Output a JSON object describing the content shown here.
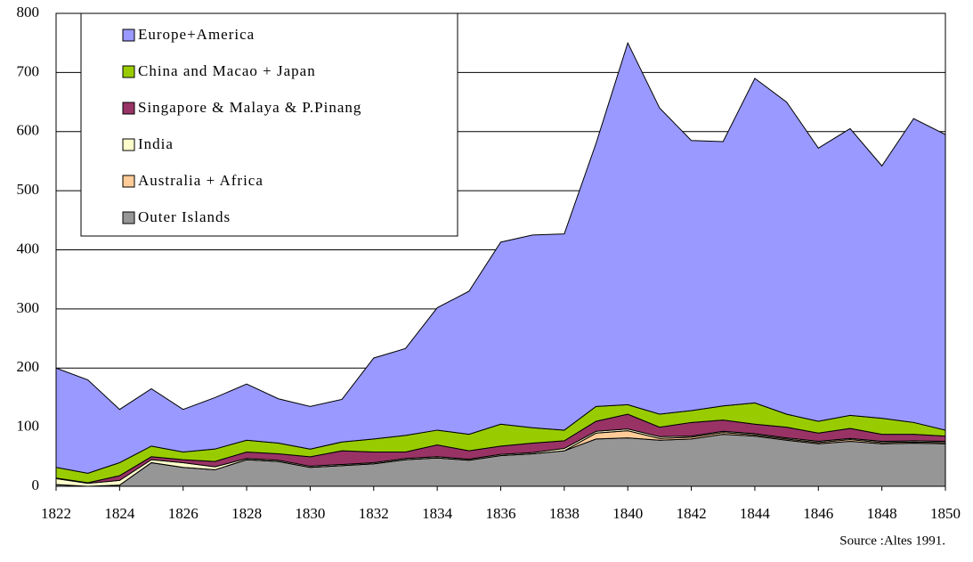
{
  "chart_data": {
    "type": "stacked_area",
    "x": [
      1822,
      1823,
      1824,
      1825,
      1826,
      1827,
      1828,
      1829,
      1830,
      1831,
      1832,
      1833,
      1834,
      1835,
      1836,
      1837,
      1838,
      1839,
      1840,
      1841,
      1842,
      1843,
      1844,
      1845,
      1846,
      1847,
      1848,
      1849,
      1850
    ],
    "series": [
      {
        "name": "Outer Islands",
        "color": "#969696",
        "values": [
          3,
          0,
          2,
          40,
          32,
          28,
          45,
          42,
          32,
          35,
          38,
          45,
          48,
          44,
          52,
          55,
          60,
          80,
          82,
          78,
          80,
          88,
          85,
          78,
          72,
          76,
          72,
          73,
          72
        ]
      },
      {
        "name": "Australia + Africa",
        "color": "#ffcc99",
        "values": [
          0,
          0,
          0,
          0,
          0,
          0,
          0,
          0,
          0,
          0,
          0,
          0,
          0,
          0,
          0,
          0,
          0,
          10,
          12,
          3,
          3,
          3,
          2,
          2,
          2,
          3,
          2,
          2,
          2
        ]
      },
      {
        "name": "India",
        "color": "#ffffcc",
        "values": [
          10,
          5,
          8,
          5,
          8,
          5,
          2,
          2,
          2,
          2,
          2,
          2,
          2,
          2,
          2,
          2,
          4,
          3,
          3,
          3,
          2,
          2,
          2,
          2,
          2,
          2,
          2,
          2,
          2
        ]
      },
      {
        "name": "Singapore & Malaya & P.Pinang",
        "color": "#993366",
        "values": [
          1,
          1,
          8,
          5,
          5,
          9,
          11,
          11,
          16,
          23,
          18,
          11,
          20,
          14,
          14,
          16,
          13,
          17,
          25,
          16,
          23,
          19,
          16,
          18,
          14,
          17,
          12,
          11,
          9
        ]
      },
      {
        "name": "China and Macao + Japan",
        "color": "#99cc00",
        "values": [
          18,
          16,
          22,
          18,
          13,
          21,
          20,
          18,
          13,
          15,
          22,
          28,
          25,
          28,
          37,
          26,
          18,
          25,
          16,
          22,
          20,
          24,
          36,
          22,
          20,
          22,
          27,
          20,
          10
        ]
      },
      {
        "name": "Europe+America",
        "color": "#9999ff",
        "values": [
          168,
          158,
          90,
          97,
          72,
          87,
          95,
          75,
          72,
          72,
          137,
          147,
          207,
          242,
          308,
          326,
          332,
          445,
          612,
          518,
          457,
          447,
          549,
          528,
          462,
          485,
          427,
          514,
          500
        ]
      }
    ],
    "xlim": [
      1822,
      1850
    ],
    "xticks": [
      1822,
      1824,
      1826,
      1828,
      1830,
      1832,
      1834,
      1836,
      1838,
      1840,
      1842,
      1844,
      1846,
      1848,
      1850
    ],
    "ylim": [
      0,
      800
    ],
    "yticks": [
      0,
      100,
      200,
      300,
      400,
      500,
      600,
      700,
      800
    ],
    "grid": true,
    "legend": "upper left",
    "source": "Source :Altes 1991."
  }
}
